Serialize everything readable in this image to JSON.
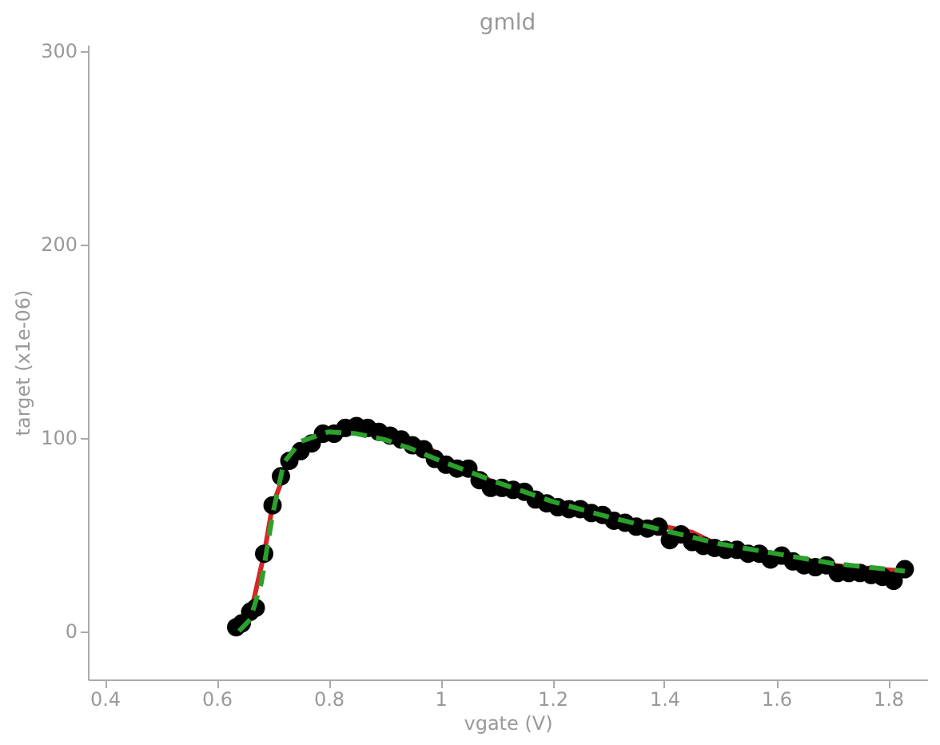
{
  "chart_data": {
    "type": "scatter",
    "title": "gmld",
    "xlabel": "vgate (V)",
    "ylabel": "target (x1e-06)",
    "xlim": [
      0.37,
      1.87
    ],
    "xticks": [
      0.4,
      0.6,
      0.8,
      {
        "value": 1,
        "label": "1"
      },
      1.2,
      1.4,
      1.6,
      1.8
    ],
    "ylim": [
      -25,
      303
    ],
    "yticks": [
      0,
      100,
      200,
      300
    ],
    "grid": false,
    "series": [
      {
        "type": "line",
        "color": "#d62728",
        "line_style": "solid",
        "x": [
          0.635,
          0.66,
          0.685,
          0.7,
          0.73,
          0.77,
          0.81,
          0.85,
          0.9,
          0.95,
          0.97,
          1.0,
          1.05,
          1.1,
          1.2,
          1.3,
          1.4,
          1.45,
          1.5,
          1.6,
          1.7,
          1.83
        ],
        "values": [
          2,
          8,
          40,
          65,
          88,
          97,
          103,
          106,
          103,
          98,
          97,
          90,
          84,
          76,
          67,
          59,
          54,
          51,
          44,
          40,
          34,
          31
        ]
      },
      {
        "color": "#000000",
        "marker": "circle",
        "x": [
          0.635,
          0.645,
          0.66,
          0.67,
          0.685,
          0.7,
          0.715,
          0.73,
          0.75,
          0.77,
          0.79,
          0.81,
          0.83,
          0.85,
          0.87,
          0.89,
          0.91,
          0.93,
          0.95,
          0.97,
          0.99,
          1.01,
          1.03,
          1.05,
          1.07,
          1.09,
          1.11,
          1.13,
          1.15,
          1.17,
          1.19,
          1.21,
          1.23,
          1.25,
          1.27,
          1.29,
          1.31,
          1.33,
          1.35,
          1.37,
          1.39,
          1.41,
          1.43,
          1.45,
          1.47,
          1.49,
          1.51,
          1.53,
          1.55,
          1.57,
          1.59,
          1.61,
          1.63,
          1.65,
          1.67,
          1.69,
          1.71,
          1.73,
          1.75,
          1.77,
          1.79,
          1.81,
          1.83
        ],
        "values": [
          2,
          4,
          10,
          12,
          40,
          65,
          80,
          88,
          93,
          97,
          102,
          102,
          105,
          106,
          105,
          103,
          101,
          99,
          96,
          94,
          89,
          86,
          84,
          84,
          78,
          74,
          74,
          73,
          72,
          68,
          66,
          64,
          63,
          63,
          61,
          60,
          57,
          56,
          54,
          53,
          54,
          47,
          50,
          46,
          44,
          43,
          42,
          42,
          40,
          40,
          37,
          39,
          36,
          34,
          33,
          34,
          30,
          30,
          30,
          29,
          28,
          26,
          32
        ]
      },
      {
        "type": "line",
        "color": "#2ca02c",
        "line_style": "dashed",
        "x": [
          0.64,
          0.66,
          0.68,
          0.7,
          0.72,
          0.75,
          0.8,
          0.85,
          0.9,
          0.95,
          1.0,
          1.1,
          1.2,
          1.3,
          1.4,
          1.5,
          1.6,
          1.7,
          1.83
        ],
        "values": [
          0,
          6,
          25,
          60,
          87,
          98,
          103,
          102,
          99,
          94,
          88,
          77,
          67,
          59,
          52,
          45,
          40,
          35,
          31
        ]
      }
    ]
  }
}
